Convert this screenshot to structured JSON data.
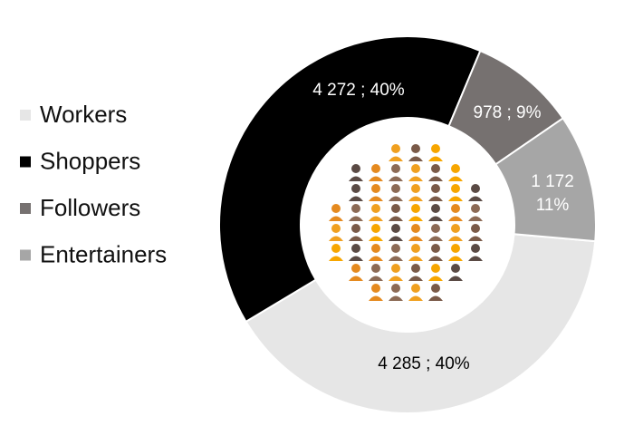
{
  "chart_data": {
    "type": "donut",
    "categories": [
      "Workers",
      "Shoppers",
      "Followers",
      "Entertainers"
    ],
    "values": [
      4285,
      4272,
      978,
      1172
    ],
    "value_labels": [
      "4 285 ; 40%",
      "4 272 ; 40%",
      "978 ; 9%",
      [
        "1 172",
        "11%"
      ]
    ],
    "colors": [
      "#e6e6e6",
      "#000000",
      "#767170",
      "#a6a6a6"
    ],
    "legend": "left"
  }
}
